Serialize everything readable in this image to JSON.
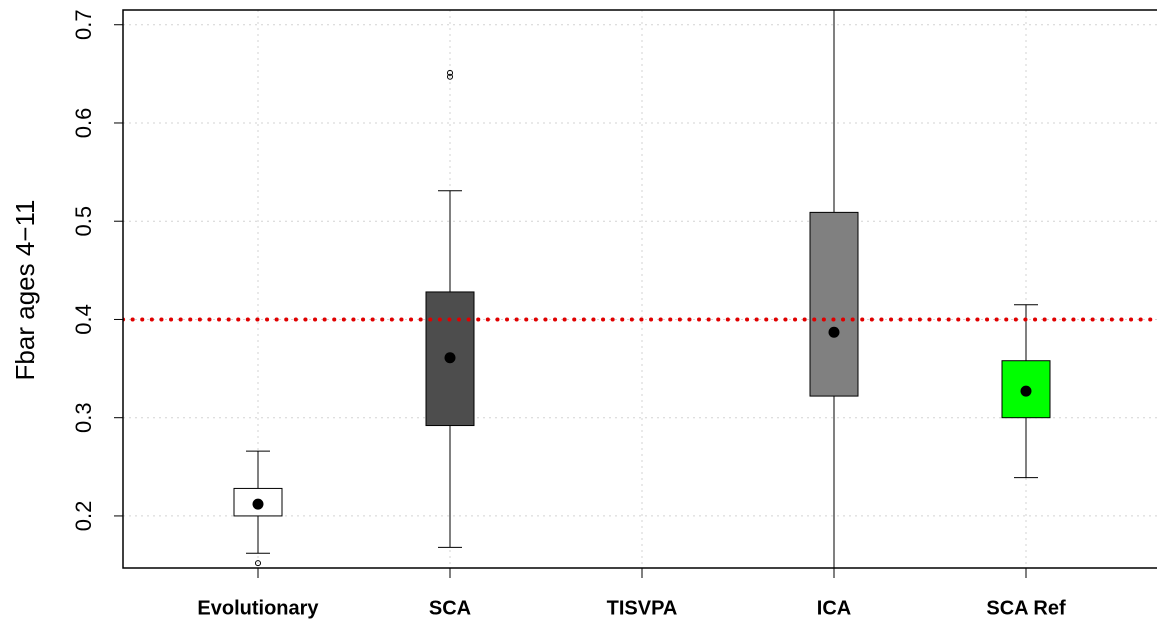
{
  "chart_data": {
    "type": "box",
    "y_label": "Fbar ages 4−11",
    "categories": [
      "Evolutionary",
      "SCA",
      "TISVPA",
      "ICA",
      "SCA Ref"
    ],
    "colors": [
      "#ffffff",
      "#4d4d4d",
      null,
      "#808080",
      "#00ff00"
    ],
    "whisker_low": [
      0.162,
      0.168,
      null,
      0.1,
      0.239
    ],
    "q1": [
      0.2,
      0.292,
      null,
      0.322,
      0.3
    ],
    "median": [
      0.212,
      0.361,
      null,
      0.387,
      0.327
    ],
    "q3": [
      0.228,
      0.428,
      null,
      0.509,
      0.358
    ],
    "whisker_high": [
      0.266,
      0.531,
      null,
      0.75,
      0.415
    ],
    "outliers": [
      [
        0.152
      ],
      [
        0.651,
        0.647
      ],
      [],
      [],
      []
    ],
    "ylim": [
      0.147,
      0.715
    ],
    "yticks": [
      0.2,
      0.3,
      0.4,
      0.5,
      0.6,
      0.7
    ],
    "grid": true,
    "hline": {
      "value": 0.4,
      "color": "#e00000"
    }
  }
}
